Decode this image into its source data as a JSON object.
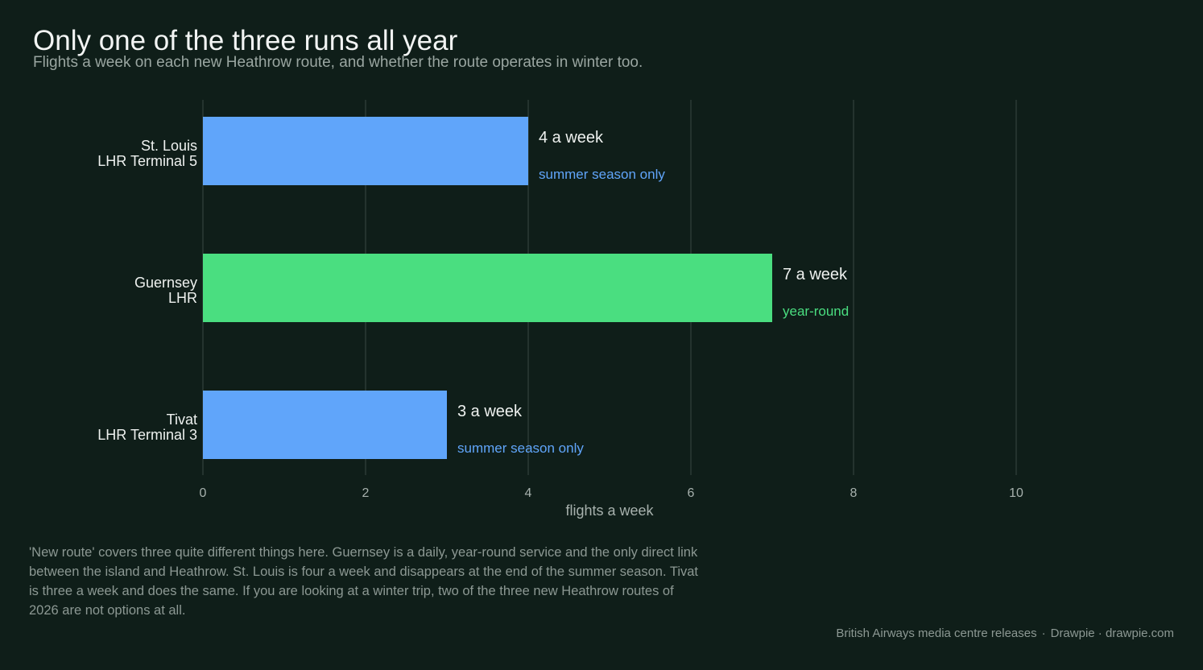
{
  "title": "Only one of the three runs all year",
  "subtitle": "Flights a week on each new Heathrow route, and whether the route operates in winter too.",
  "note": "'New route' covers three quite different things here. Guernsey is a daily, year-round service and the only direct link between the island and Heathrow. St. Louis is four a week and disappears at the end of the summer season. Tivat is three a week and does the same. If you are looking at a winter trip, two of the three new Heathrow routes of 2026 are not options at all.",
  "source": {
    "publisher": "British Airways media centre releases",
    "separator": "·",
    "credit": "Drawpie · drawpie.com"
  },
  "colors": {
    "summer": "#60a5fa",
    "year_round": "#4ade80",
    "grid": "#2b3a35",
    "tick_text": "#a7b1ad",
    "label_text": "#eef1ef"
  },
  "chart_data": {
    "type": "bar",
    "orientation": "horizontal",
    "xlabel": "flights a week",
    "xlim": [
      0,
      10
    ],
    "xticks": [
      0,
      2,
      4,
      6,
      8,
      10
    ],
    "grid": true,
    "bars": [
      {
        "destination": "St. Louis",
        "airport": "LHR Terminal 5",
        "value": 4,
        "value_label": "4 a week",
        "season": "summer season only",
        "season_type": "summer"
      },
      {
        "destination": "Guernsey",
        "airport": "LHR",
        "value": 7,
        "value_label": "7 a week",
        "season": "year-round",
        "season_type": "year_round"
      },
      {
        "destination": "Tivat",
        "airport": "LHR Terminal 3",
        "value": 3,
        "value_label": "3 a week",
        "season": "summer season only",
        "season_type": "summer"
      }
    ]
  }
}
